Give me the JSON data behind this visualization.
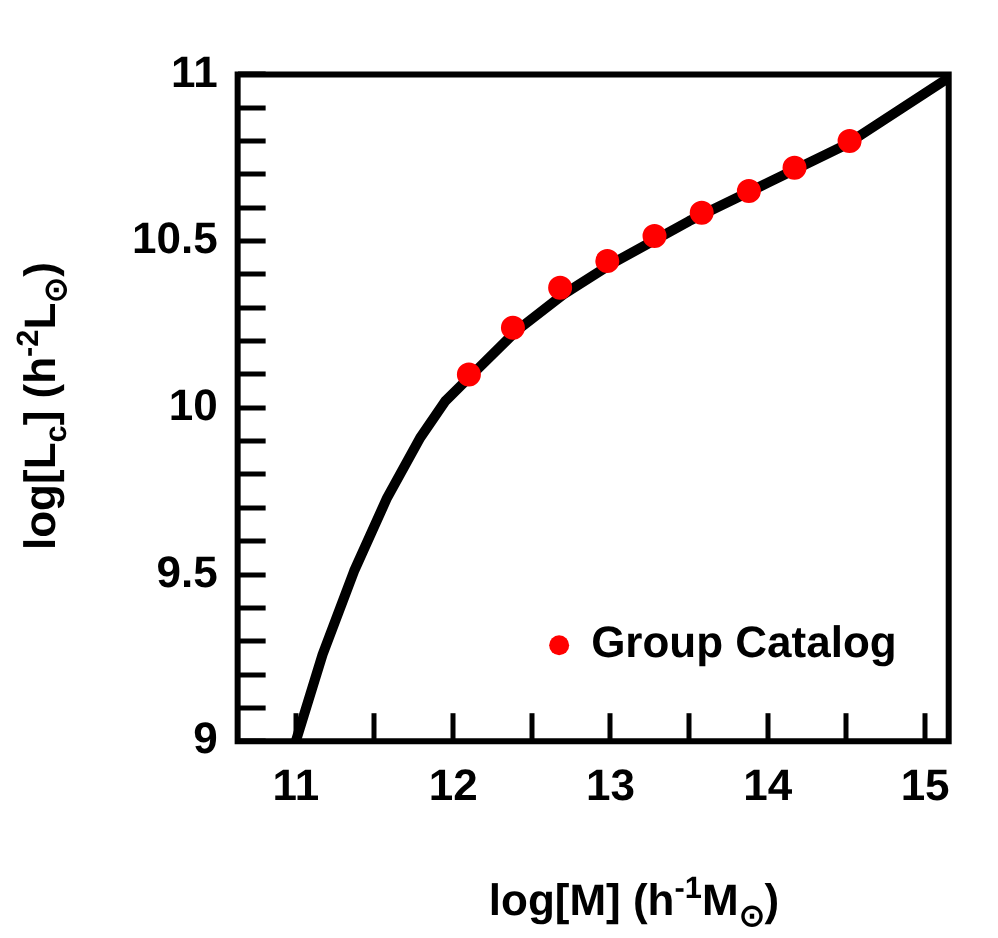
{
  "chart_data": {
    "type": "line",
    "xlabel": "log[M]  (h$^{-1}$M$_{⊙}$)",
    "ylabel": "log[L$_{c}$]  (h$^{-2}$L$_{⊙}$)",
    "xlim": [
      10.63,
      15.15
    ],
    "ylim": [
      9,
      11
    ],
    "xticks": [
      11,
      {
        "value": 11.5,
        "label": null
      },
      12,
      {
        "value": 12.5,
        "label": null
      },
      13,
      {
        "value": 13.5,
        "label": null
      },
      14,
      {
        "value": 14.5,
        "label": null
      },
      15
    ],
    "yticks": [
      9,
      {
        "value": 9.1,
        "label": null
      },
      {
        "value": 9.2,
        "label": null
      },
      {
        "value": 9.3,
        "label": null
      },
      {
        "value": 9.4,
        "label": null
      },
      9.5,
      {
        "value": 9.6,
        "label": null
      },
      {
        "value": 9.7,
        "label": null
      },
      {
        "value": 9.8,
        "label": null
      },
      {
        "value": 9.9,
        "label": null
      },
      10,
      {
        "value": 10.1,
        "label": null
      },
      {
        "value": 10.2,
        "label": null
      },
      {
        "value": 10.3,
        "label": null
      },
      {
        "value": 10.4,
        "label": null
      },
      10.5,
      {
        "value": 10.6,
        "label": null
      },
      {
        "value": 10.7,
        "label": null
      },
      {
        "value": 10.8,
        "label": null
      },
      {
        "value": 10.9,
        "label": null
      },
      11
    ],
    "grid": false,
    "legend": "bottom right",
    "series": [
      {
        "type": "line",
        "color": "#000000",
        "marker": "none",
        "x": [
          11.0,
          11.17,
          11.37,
          11.58,
          11.79,
          11.95,
          12.1,
          12.4,
          12.7,
          13.0,
          13.5,
          14.0,
          14.5,
          15.15
        ],
        "values": [
          9.0,
          9.26,
          9.51,
          9.73,
          9.91,
          10.02,
          10.09,
          10.23,
          10.34,
          10.43,
          10.56,
          10.675,
          10.79,
          10.99
        ]
      },
      {
        "type": "scatter",
        "name": "Group Catalog",
        "color": "#ff0000",
        "marker": "circle",
        "x": [
          12.1,
          12.38,
          12.68,
          12.98,
          13.28,
          13.58,
          13.88,
          14.17,
          14.52
        ],
        "values": [
          10.1,
          10.24,
          10.36,
          10.44,
          10.515,
          10.585,
          10.65,
          10.72,
          10.8
        ]
      }
    ]
  }
}
